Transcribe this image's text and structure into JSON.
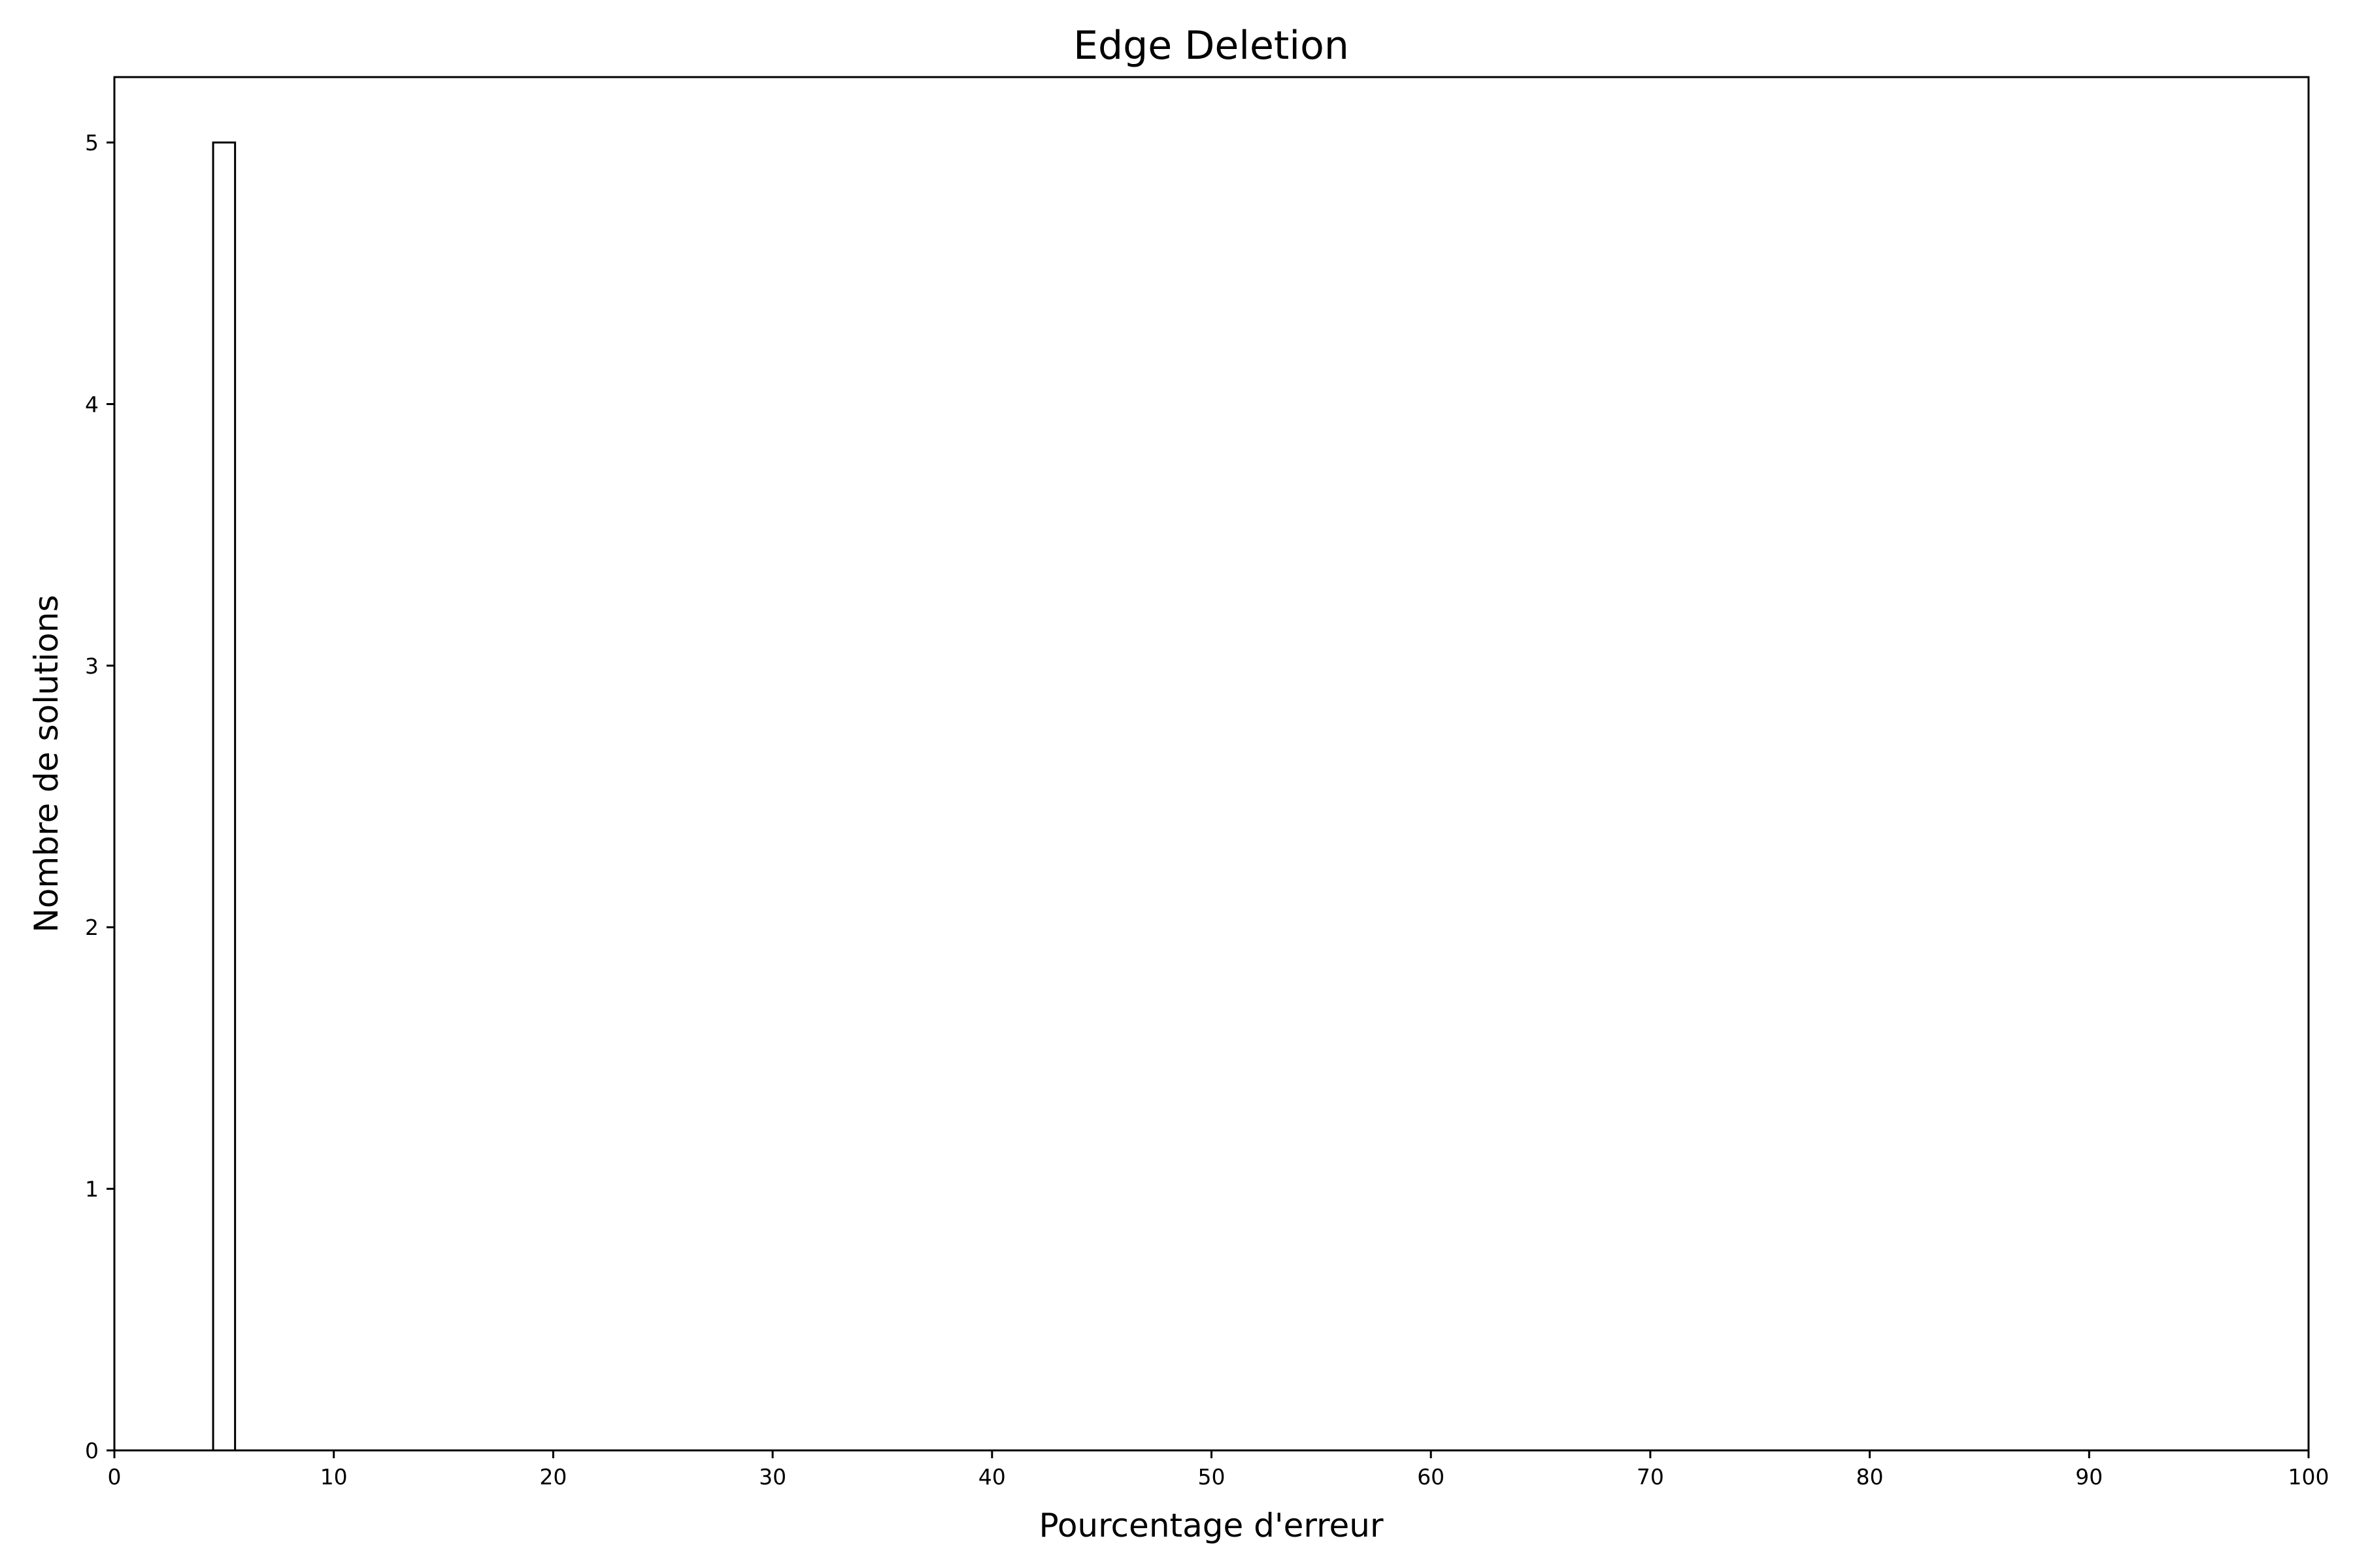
{
  "chart_data": {
    "type": "bar",
    "title": "Edge Deletion",
    "xlabel": "Pourcentage d'erreur",
    "ylabel": "Nombre de solutions",
    "xlim": [
      0,
      100
    ],
    "ylim": [
      0,
      5.25
    ],
    "x_ticks": [
      "0",
      "10",
      "20",
      "30",
      "40",
      "50",
      "60",
      "70",
      "80",
      "90",
      "100"
    ],
    "y_ticks": [
      "0",
      "1",
      "2",
      "3",
      "4",
      "5"
    ],
    "bins": [
      {
        "start": 4.5,
        "end": 5.5,
        "value": 5
      }
    ],
    "bar_fill": "#ffffff",
    "bar_edge": "#000000",
    "grid": false,
    "legend": false
  }
}
